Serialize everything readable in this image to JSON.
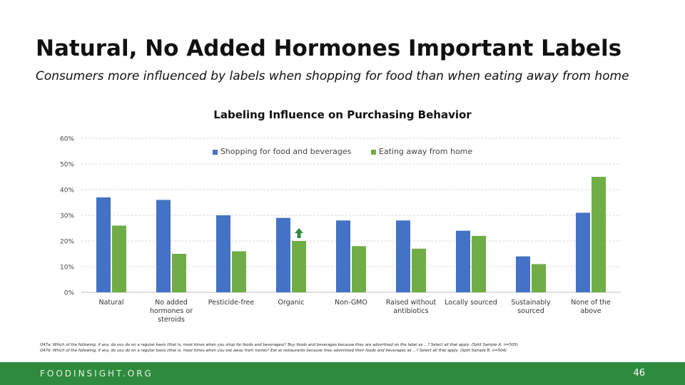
{
  "slide": {
    "title": "Natural, No Added Hormones Important Labels",
    "subtitle": "Consumers more influenced by labels when shopping for food than when eating away from home",
    "footnote1": "Q47a: Which of the following, if any, do you do on a regular basis (that is, most times when you shop for foods and beverages)? Buy foods and beverages because they are advertised on the label as ...? Select all that apply. (Split Sample A, n=505)",
    "footnote2": "Q47b: Which of the following, if any, do you do on a regular basis (that is, most times when you eat away from home)? Eat at restaurants because they advertised their foods and beverages as ...? Select all that apply. (Split Sample B, n=504)",
    "footer_logo": "FOODINSIGHT.ORG",
    "page_number": "46"
  },
  "colors": {
    "series1": "#4472c4",
    "series2": "#70ad47",
    "arrow": "#2e8b3e",
    "footer": "#2e8b3e"
  },
  "chart_data": {
    "type": "bar",
    "title": "Labeling Influence on Purchasing Behavior",
    "categories": [
      "Natural",
      "No added hormones or steroids",
      "Pesticide-free",
      "Organic",
      "Non-GMO",
      "Raised without antibiotics",
      "Locally sourced",
      "Sustainably sourced",
      "None of the above"
    ],
    "series": [
      {
        "name": "Shopping for food and beverages",
        "values": [
          37,
          36,
          30,
          29,
          28,
          28,
          24,
          14,
          31
        ]
      },
      {
        "name": "Eating away from home",
        "values": [
          26,
          15,
          16,
          20,
          18,
          17,
          22,
          11,
          45
        ]
      }
    ],
    "yticks": [
      "0%",
      "10%",
      "20%",
      "30%",
      "40%",
      "50%",
      "60%"
    ],
    "ylim": [
      0,
      60
    ],
    "grid": true,
    "legend_position": "top",
    "annotation": {
      "type": "up-arrow",
      "category": "Organic",
      "series": 1
    }
  }
}
